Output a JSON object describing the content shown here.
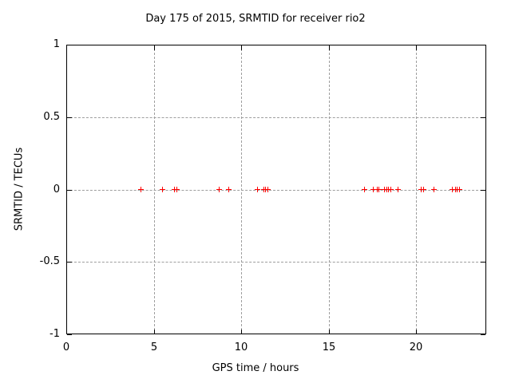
{
  "window": {
    "background_color": "#ffffff"
  },
  "chart_data": {
    "type": "scatter",
    "title": "Day 175 of 2015, SRMTID for receiver rio2",
    "xlabel": "GPS time / hours",
    "ylabel": "SRMTID / TECUs",
    "xlim": [
      0,
      24
    ],
    "ylim": [
      -1,
      1
    ],
    "grid": true,
    "legend": "none",
    "xticks": {
      "values": [
        0,
        5,
        10,
        15,
        20
      ],
      "labels": [
        "0",
        "5",
        "10",
        "15",
        "20"
      ]
    },
    "yticks": {
      "values": [
        1,
        0.5,
        0,
        -0.5,
        -1
      ],
      "labels": [
        "1",
        "0.5",
        "0",
        "-0.5",
        "-1"
      ]
    },
    "colors": {
      "marker": "#ff0000",
      "grid": "#9e9e9e",
      "axis": "#000000",
      "text": "#000000",
      "background": "#ffffff"
    },
    "series": [
      {
        "name": "SRMTID",
        "marker": "plus",
        "color": "#ff0000",
        "x": [
          4.27,
          5.49,
          6.2,
          6.3,
          8.76,
          9.29,
          10.95,
          11.29,
          11.4,
          11.52,
          17.02,
          17.55,
          17.75,
          17.88,
          18.2,
          18.32,
          18.42,
          18.57,
          18.97,
          20.3,
          20.44,
          21.0,
          22.06,
          22.25,
          22.35,
          22.45
        ],
        "y": [
          0,
          0,
          0,
          0,
          0,
          0,
          0,
          0,
          0,
          0,
          0,
          0,
          0,
          0,
          0,
          0,
          0,
          0,
          0,
          0,
          0,
          0,
          0,
          0,
          0,
          0
        ]
      }
    ]
  }
}
